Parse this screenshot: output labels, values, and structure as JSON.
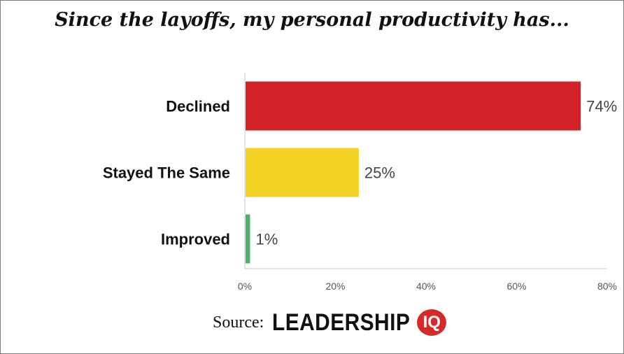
{
  "chart_data": {
    "type": "bar",
    "orientation": "horizontal",
    "title": "Since the layoffs, my personal productivity has...",
    "categories": [
      "Declined",
      "Stayed The Same",
      "Improved"
    ],
    "values": [
      74,
      25,
      1
    ],
    "data_labels": [
      "74%",
      "25%",
      "1%"
    ],
    "bar_colors": [
      "#d3232a",
      "#f2d124",
      "#4fb26a"
    ],
    "x_ticks": [
      "0%",
      "20%",
      "40%",
      "60%",
      "80%"
    ],
    "x_tick_values": [
      0,
      20,
      40,
      60,
      80
    ],
    "xlim": [
      0,
      80
    ],
    "grid": false,
    "legend": "none"
  },
  "source": {
    "label": "Source:",
    "logo_text": "LEADERSHIP",
    "logo_badge": "IQ"
  }
}
